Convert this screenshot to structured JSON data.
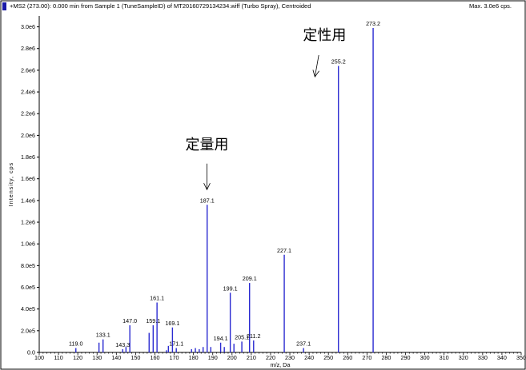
{
  "header": {
    "title": "+MS2 (273.00): 0.000 min from Sample 1 (TuneSampleID) of MT20160729134234.wiff (Turbo Spray), Centroided",
    "max_label": "Max. 3.0e6 cps.",
    "marker_color": "#1a1aa8"
  },
  "chart_data": {
    "type": "bar",
    "title": "",
    "xlabel": "m/z, Da",
    "ylabel": "Intensity, cps",
    "xlim": [
      100,
      350
    ],
    "ylim": [
      0,
      3100000.0
    ],
    "x_ticks": [
      100,
      110,
      120,
      130,
      140,
      150,
      160,
      170,
      180,
      190,
      200,
      210,
      220,
      230,
      240,
      250,
      260,
      270,
      280,
      290,
      300,
      310,
      320,
      330,
      340,
      350
    ],
    "x_tick_labels": [
      "100",
      "110",
      "120",
      "130",
      "140",
      "150",
      "160",
      "170",
      "180",
      "190",
      "200",
      "210",
      "220",
      "230",
      "240",
      "250",
      "260",
      "270",
      "280",
      "290",
      "300",
      "310",
      "320",
      "330",
      "340",
      "350"
    ],
    "y_ticks": [
      0,
      200000,
      400000,
      600000,
      800000,
      1000000,
      1200000,
      1400000,
      1600000,
      1800000,
      2000000,
      2200000,
      2400000,
      2600000,
      2800000,
      3000000
    ],
    "y_tick_labels": [
      "0.0",
      "2.0e5",
      "4.0e5",
      "6.0e5",
      "8.0e5",
      "1.0e6",
      "1.2e6",
      "1.4e6",
      "1.6e6",
      "1.8e6",
      "2.0e6",
      "2.2e6",
      "2.4e6",
      "2.6e6",
      "2.8e6",
      "3.0e6"
    ],
    "bar_color": "#2b2bd1",
    "peaks": [
      {
        "x": 119.0,
        "y": 40000,
        "label": "119.0"
      },
      {
        "x": 131.0,
        "y": 90000,
        "label": ""
      },
      {
        "x": 133.1,
        "y": 120000,
        "label": "133.1"
      },
      {
        "x": 143.3,
        "y": 30000,
        "label": "143.3"
      },
      {
        "x": 145.0,
        "y": 50000,
        "label": ""
      },
      {
        "x": 147.0,
        "y": 250000,
        "label": "147.0"
      },
      {
        "x": 157.0,
        "y": 180000,
        "label": ""
      },
      {
        "x": 159.1,
        "y": 250000,
        "label": "159.1"
      },
      {
        "x": 161.1,
        "y": 460000,
        "label": "161.1"
      },
      {
        "x": 166.0,
        "y": 20000,
        "label": ""
      },
      {
        "x": 167.0,
        "y": 60000,
        "label": ""
      },
      {
        "x": 169.1,
        "y": 230000,
        "label": "169.1"
      },
      {
        "x": 171.1,
        "y": 40000,
        "label": "171.1"
      },
      {
        "x": 179.0,
        "y": 30000,
        "label": ""
      },
      {
        "x": 181.0,
        "y": 40000,
        "label": ""
      },
      {
        "x": 183.0,
        "y": 30000,
        "label": ""
      },
      {
        "x": 185.0,
        "y": 50000,
        "label": ""
      },
      {
        "x": 187.1,
        "y": 1360000,
        "label": "187.1"
      },
      {
        "x": 189.0,
        "y": 50000,
        "label": ""
      },
      {
        "x": 194.1,
        "y": 90000,
        "label": "194.1"
      },
      {
        "x": 196.0,
        "y": 50000,
        "label": ""
      },
      {
        "x": 199.1,
        "y": 550000,
        "label": "199.1"
      },
      {
        "x": 201.0,
        "y": 80000,
        "label": ""
      },
      {
        "x": 205.1,
        "y": 100000,
        "label": "205.1"
      },
      {
        "x": 209.1,
        "y": 640000,
        "label": "209.1"
      },
      {
        "x": 211.2,
        "y": 110000,
        "label": "211.2"
      },
      {
        "x": 227.1,
        "y": 900000,
        "label": "227.1"
      },
      {
        "x": 237.1,
        "y": 40000,
        "label": "237.1"
      },
      {
        "x": 255.2,
        "y": 2640000,
        "label": "255.2"
      },
      {
        "x": 273.2,
        "y": 2990000,
        "label": "273.2"
      }
    ],
    "annotations": [
      {
        "text": "定性用",
        "text_x": 248,
        "text_y": 2880000,
        "arrow_from": [
          245,
          2740000
        ],
        "arrow_to": [
          243,
          2540000
        ]
      },
      {
        "text": "定量用",
        "text_x": 187,
        "text_y": 1870000,
        "arrow_from": [
          187,
          1740000
        ],
        "arrow_to": [
          187,
          1500000
        ]
      }
    ]
  }
}
